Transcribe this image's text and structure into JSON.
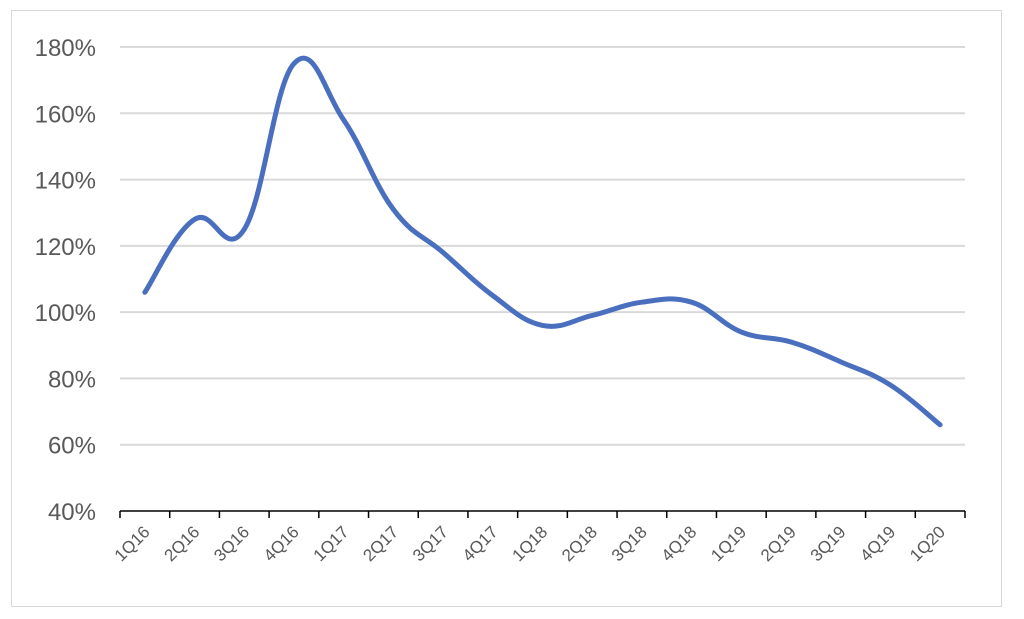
{
  "chart_data": {
    "type": "line",
    "title": "",
    "xlabel": "",
    "ylabel": "",
    "categories": [
      "1Q16",
      "2Q16",
      "3Q16",
      "4Q16",
      "1Q17",
      "2Q17",
      "3Q17",
      "4Q17",
      "1Q18",
      "2Q18",
      "3Q18",
      "4Q18",
      "1Q19",
      "2Q19",
      "3Q19",
      "4Q19",
      "1Q20"
    ],
    "series": [
      {
        "values": [
          1.06,
          1.28,
          1.25,
          1.75,
          1.58,
          1.31,
          1.18,
          1.05,
          0.96,
          0.99,
          1.03,
          1.03,
          0.94,
          0.91,
          0.85,
          0.78,
          0.66
        ],
        "color": "#4a6fbf"
      }
    ],
    "ylim": [
      0.4,
      1.8
    ],
    "yticks": [
      "40%",
      "60%",
      "80%",
      "100%",
      "120%",
      "140%",
      "160%",
      "180%"
    ],
    "yticks_values": [
      0.4,
      0.6,
      0.8,
      1.0,
      1.2,
      1.4,
      1.6,
      1.8
    ],
    "grid": true,
    "legend": "none",
    "gridline_color": "#d9d9d9",
    "axis_color": "#000000"
  }
}
